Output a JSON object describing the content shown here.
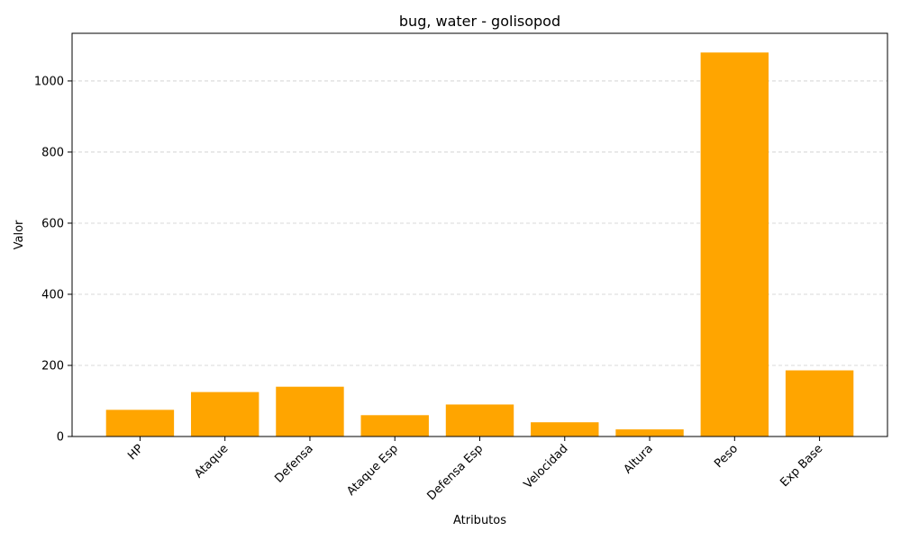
{
  "chart_data": {
    "type": "bar",
    "title": "bug, water - golisopod",
    "xlabel": "Atributos",
    "ylabel": "Valor",
    "categories": [
      "HP",
      "Ataque",
      "Defensa",
      "Ataque Esp",
      "Defensa Esp",
      "Velocidad",
      "Altura",
      "Peso",
      "Exp Base"
    ],
    "values": [
      75,
      125,
      140,
      60,
      90,
      40,
      20,
      1080,
      186
    ],
    "ylim": [
      0,
      1134
    ],
    "yticks": [
      0,
      200,
      400,
      600,
      800,
      1000
    ],
    "grid": "y-dashed",
    "bar_color": "#ffa500",
    "grid_color": "#cccccc"
  }
}
